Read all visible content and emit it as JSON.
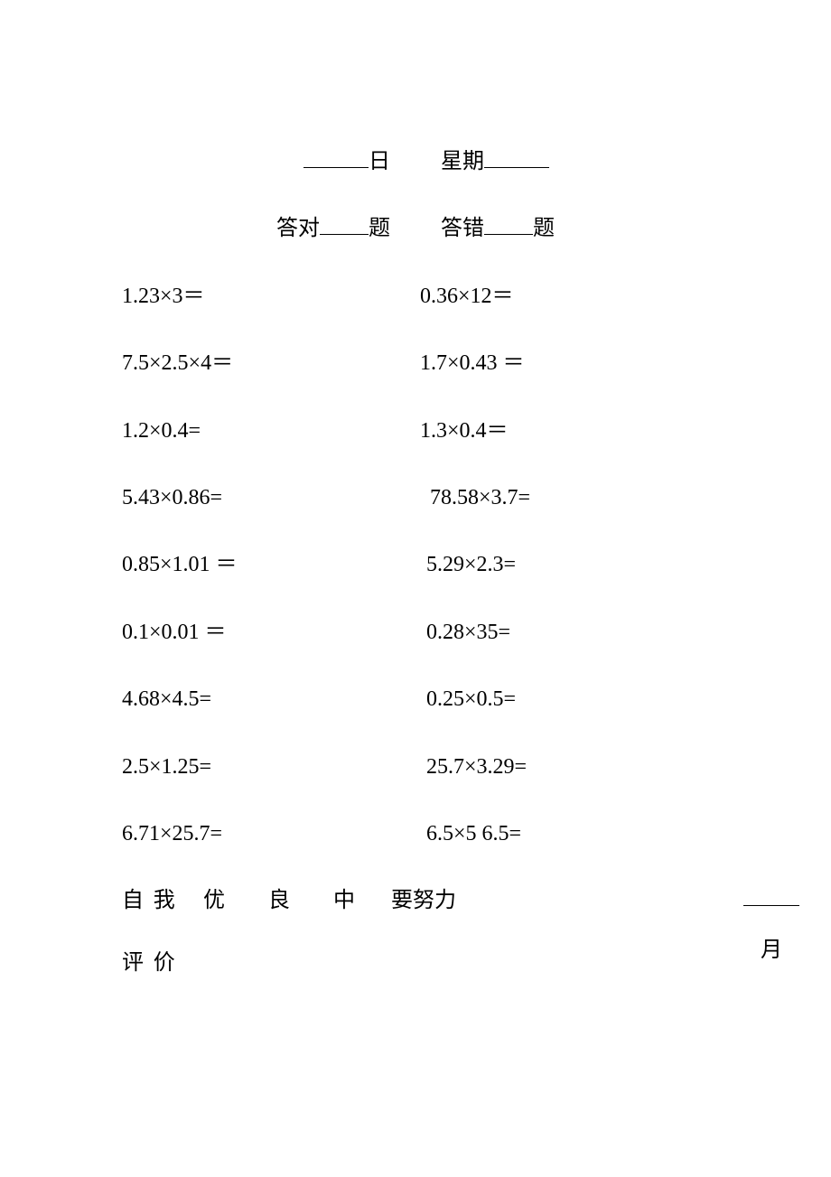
{
  "header": {
    "day_suffix": "日",
    "weekday_prefix": "星期",
    "correct_prefix": "答对",
    "correct_suffix": "题",
    "wrong_prefix": "答错",
    "wrong_suffix": "题"
  },
  "problems": [
    {
      "left": "1.23×3＝",
      "right": "0.36×12＝",
      "rpad": "pad-a"
    },
    {
      "left": "7.5×2.5×4＝",
      "right": "1.7×0.43 ＝",
      "rpad": "pad-a"
    },
    {
      "left": "1.2×0.4=",
      "right": "1.3×0.4＝",
      "rpad": "pad-a"
    },
    {
      "left": "5.43×0.86=",
      "right": "78.58×3.7=",
      "rpad": "pad-c"
    },
    {
      "left": "0.85×1.01 ＝",
      "right": "5.29×2.3=",
      "rpad": "pad-b"
    },
    {
      "left": "0.1×0.01 ＝",
      "right": "0.28×35=",
      "rpad": "pad-b"
    },
    {
      "left": "4.68×4.5=",
      "right": "0.25×0.5=",
      "rpad": "pad-b"
    },
    {
      "left": "2.5×1.25=",
      "right": "25.7×3.29=",
      "rpad": "pad-b"
    },
    {
      "left": "6.71×25.7=",
      "right": "6.5×5 6.5=",
      "rpad": "pad-b"
    }
  ],
  "evaluation": {
    "label_top": "自我",
    "label_bottom": "评价",
    "options": [
      "优",
      "良",
      "中",
      "要努力"
    ],
    "month_suffix": "月"
  }
}
